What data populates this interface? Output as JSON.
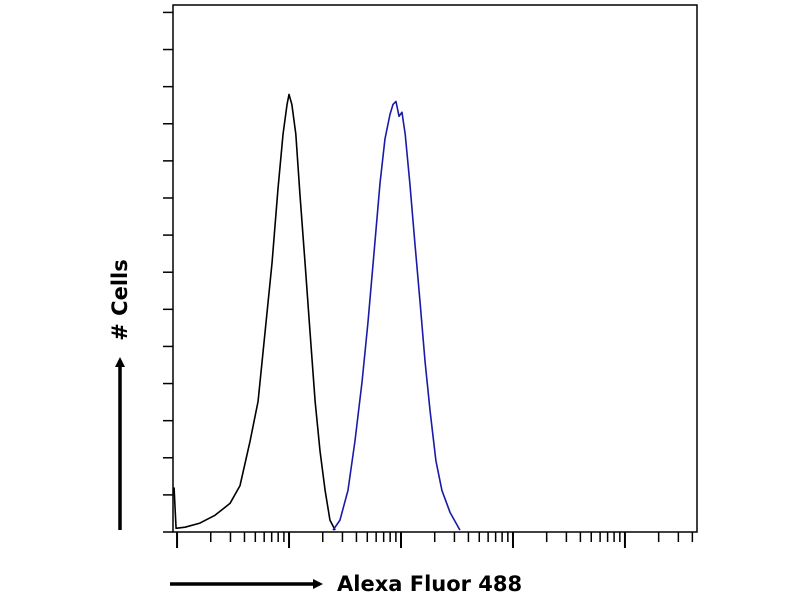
{
  "chart_data": {
    "type": "line",
    "xlabel": "Alexa Fluor 488",
    "ylabel": "# Cells",
    "xlog": true,
    "xlim": [
      0.92,
      44000
    ],
    "ylim": [
      0,
      14.2
    ],
    "xticks": [
      1,
      2,
      3,
      4,
      5,
      6,
      7,
      8,
      9,
      10,
      20,
      30,
      40,
      50,
      60,
      70,
      80,
      90,
      100,
      200,
      300,
      400,
      500,
      600,
      700,
      800,
      900,
      1000,
      2000,
      3000,
      4000,
      5000,
      6000,
      7000,
      8000,
      9000,
      10000,
      20000,
      30000,
      40000
    ],
    "yticks": [
      0,
      1,
      2,
      3,
      4,
      5,
      6,
      7,
      8,
      9,
      10,
      11,
      12,
      13,
      14
    ],
    "series": [
      {
        "color": "#000000",
        "x": [
          0.94,
          0.98,
          1.18,
          1.6,
          2.18,
          2.97,
          3.65,
          4.49,
          5.29,
          6.11,
          7.05,
          7.97,
          8.84,
          9.6,
          10,
          10.6,
          11.5,
          12.5,
          13.9,
          15.4,
          17.1,
          18.9,
          21,
          23.2,
          25.8
        ],
        "values": [
          1.2,
          0.1,
          0.13,
          0.24,
          0.45,
          0.77,
          1.25,
          2.45,
          3.52,
          5.39,
          7.25,
          9.25,
          10.72,
          11.52,
          11.79,
          11.52,
          10.72,
          9.12,
          7.25,
          5.39,
          3.52,
          2.19,
          1.12,
          0.32,
          0.05
        ]
      },
      {
        "color": "#1a1aa8",
        "x": [
          24.7,
          28.5,
          33.6,
          38.8,
          44.9,
          50.7,
          57.4,
          64.9,
          71.9,
          79.7,
          84.8,
          90.2,
          96,
          102,
          109,
          120,
          133,
          148,
          164,
          182,
          205,
          232,
          274,
          336
        ],
        "values": [
          0.05,
          0.32,
          1.12,
          2.45,
          4.05,
          5.65,
          7.52,
          9.39,
          10.59,
          11.25,
          11.52,
          11.6,
          11.2,
          11.31,
          10.72,
          9.39,
          7.79,
          6.19,
          4.59,
          3.25,
          1.92,
          1.12,
          0.53,
          0.05
        ]
      }
    ]
  }
}
